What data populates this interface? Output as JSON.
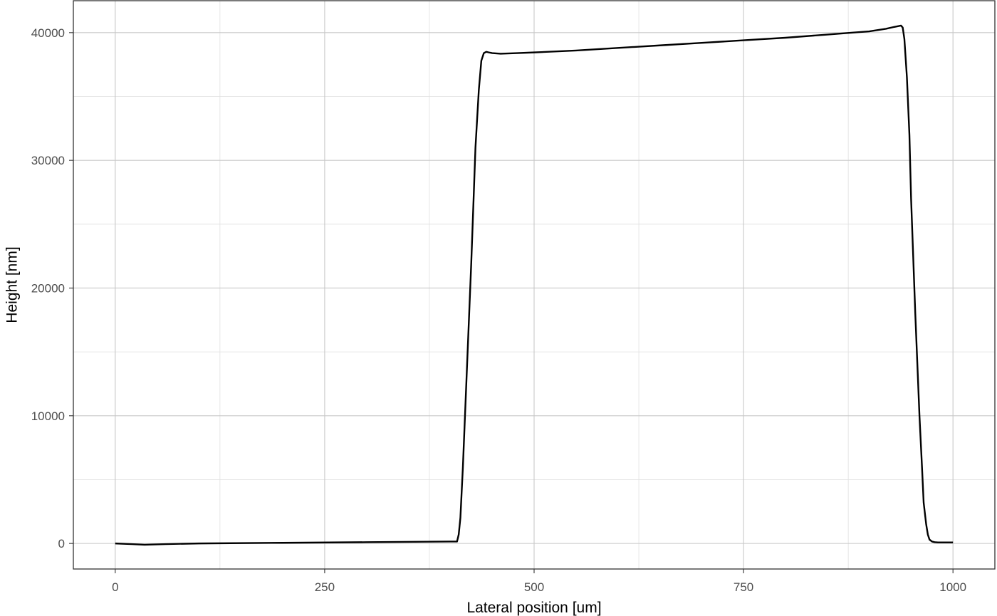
{
  "chart_data": {
    "type": "line",
    "xlabel": "Lateral position [um]",
    "ylabel": "Height [nm]",
    "xlim": [
      -50,
      1050
    ],
    "ylim": [
      -2000,
      42500
    ],
    "x_ticks": [
      0,
      250,
      500,
      750,
      1000
    ],
    "y_ticks": [
      0,
      10000,
      20000,
      30000,
      40000
    ],
    "x_tick_labels": [
      "0",
      "250",
      "500",
      "750",
      "1000"
    ],
    "y_tick_labels": [
      "0",
      "10000",
      "20000",
      "30000",
      "40000"
    ],
    "grid": true,
    "legend": "none",
    "line_color": "#000000",
    "series": [
      {
        "x": [
          0,
          20,
          35,
          60,
          100,
          200,
          300,
          400,
          408,
          410,
          412,
          415,
          420,
          425,
          430,
          434,
          437,
          440,
          443,
          446,
          450,
          460,
          480,
          500,
          550,
          600,
          650,
          700,
          750,
          800,
          850,
          880,
          900,
          920,
          930,
          938,
          940,
          942,
          945,
          948,
          950,
          955,
          960,
          963,
          965,
          968,
          970,
          972,
          975,
          978,
          982,
          990,
          1000
        ],
        "y": [
          0,
          -50,
          -100,
          -50,
          0,
          50,
          100,
          150,
          150,
          700,
          2000,
          6000,
          14000,
          22000,
          31000,
          35500,
          37800,
          38400,
          38500,
          38450,
          38400,
          38350,
          38400,
          38450,
          38600,
          38800,
          39000,
          39200,
          39400,
          39600,
          39850,
          40000,
          40100,
          40300,
          40450,
          40550,
          40400,
          39500,
          36500,
          32000,
          27000,
          18000,
          10000,
          6000,
          3200,
          1500,
          700,
          300,
          150,
          100,
          80,
          80,
          80
        ]
      }
    ]
  }
}
